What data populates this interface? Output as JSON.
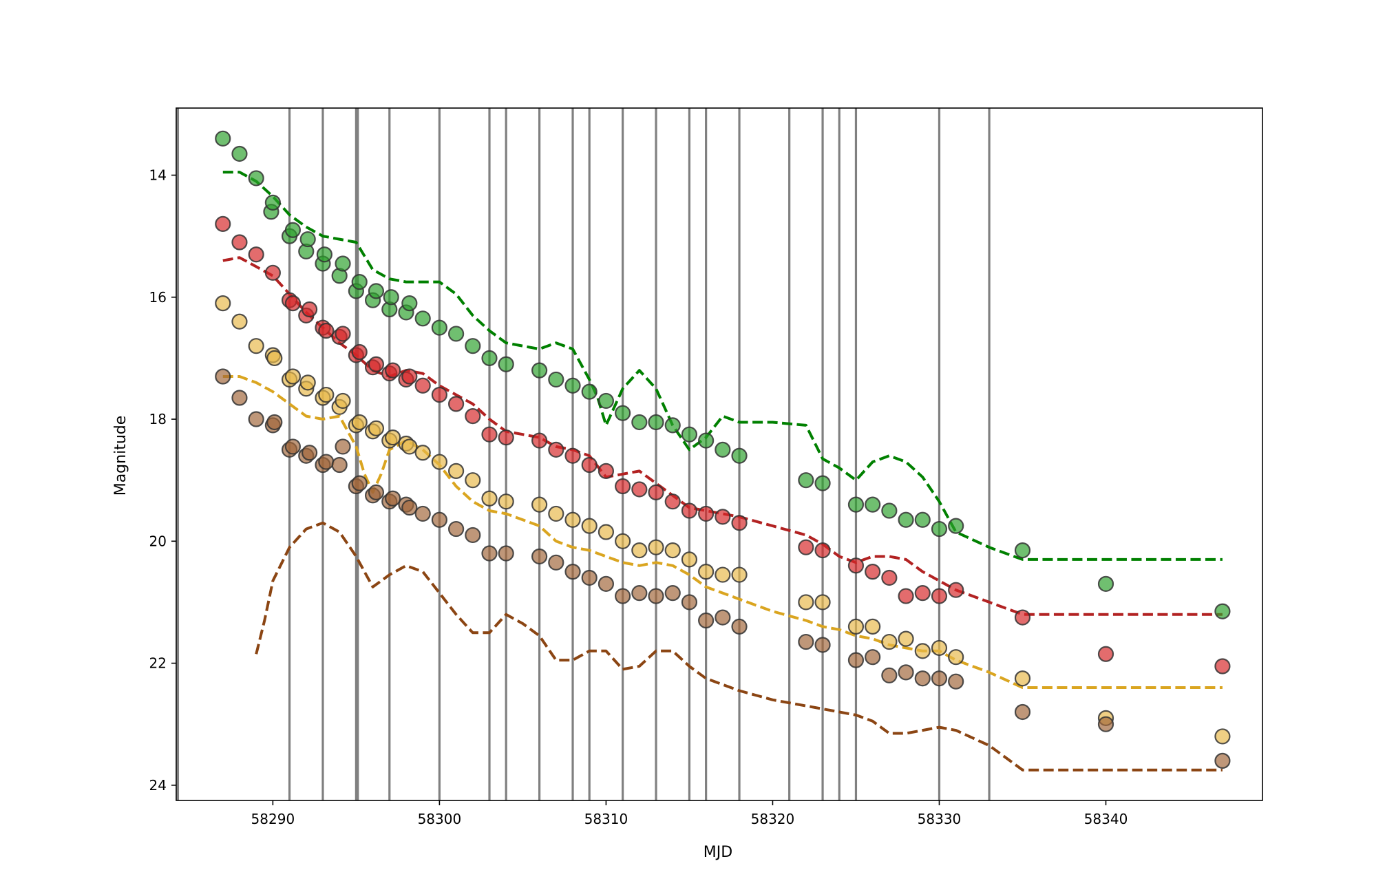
{
  "chart_data": {
    "type": "scatter",
    "xlabel": "MJD",
    "ylabel": "Magnitude",
    "xlim": [
      58284.2,
      58349.4
    ],
    "ylim": [
      24.25,
      12.9
    ],
    "y_inverted": true,
    "grid": false,
    "legend": "none",
    "x_ticks": [
      58290,
      58300,
      58310,
      58320,
      58330,
      58340
    ],
    "y_ticks": [
      14,
      16,
      18,
      20,
      22,
      24
    ],
    "vertical_lines": {
      "color": "#808080",
      "x": [
        58284.3,
        58291,
        58293,
        58295,
        58295.1,
        58297,
        58300,
        58303,
        58304,
        58306,
        58308,
        58309,
        58311,
        58313,
        58315,
        58316,
        58318,
        58321,
        58323,
        58324,
        58325,
        58330,
        58333
      ]
    },
    "series": [
      {
        "color": "#2ca02c",
        "line_color": "#008000",
        "points": {
          "x": [
            58287,
            58288,
            58289,
            58289.9,
            58290,
            58291,
            58291.2,
            58292,
            58292.1,
            58293,
            58293.1,
            58294,
            58294.2,
            58295,
            58295.2,
            58296,
            58296.2,
            58297,
            58297.1,
            58298,
            58298.2,
            58299,
            58300,
            58301,
            58302,
            58303,
            58304,
            58306,
            58307,
            58308,
            58309,
            58310,
            58311,
            58312,
            58313,
            58314,
            58315,
            58316,
            58317,
            58318,
            58322,
            58323,
            58325,
            58326,
            58327,
            58328,
            58329,
            58330,
            58331,
            58335,
            58340,
            58347
          ],
          "y": [
            13.4,
            13.65,
            14.05,
            14.6,
            14.45,
            15.0,
            14.9,
            15.25,
            15.05,
            15.45,
            15.3,
            15.65,
            15.45,
            15.9,
            15.75,
            16.05,
            15.9,
            16.2,
            16.0,
            16.25,
            16.1,
            16.35,
            16.5,
            16.6,
            16.8,
            17.0,
            17.1,
            17.2,
            17.35,
            17.45,
            17.55,
            17.7,
            17.9,
            18.05,
            18.05,
            18.1,
            18.25,
            18.35,
            18.5,
            18.6,
            19.0,
            19.05,
            19.4,
            19.4,
            19.5,
            19.65,
            19.65,
            19.8,
            19.75,
            20.15,
            20.7,
            21.15
          ]
        },
        "line": {
          "x": [
            58287,
            58288,
            58289,
            58290,
            58291,
            58292,
            58293,
            58294,
            58295,
            58296,
            58297,
            58298,
            58299,
            58300,
            58301,
            58302,
            58303,
            58304,
            58305,
            58306,
            58307,
            58308,
            58309,
            58309.5,
            58310,
            58310.5,
            58311,
            58312,
            58313,
            58314,
            58315,
            58316,
            58317,
            58318,
            58320,
            58322,
            58323,
            58324,
            58325,
            58326,
            58327,
            58328,
            58329,
            58330,
            58331,
            58333,
            58335,
            58340,
            58347
          ],
          "y": [
            13.95,
            13.95,
            14.1,
            14.35,
            14.65,
            14.85,
            15.0,
            15.05,
            15.1,
            15.55,
            15.7,
            15.75,
            15.75,
            15.75,
            15.95,
            16.3,
            16.55,
            16.75,
            16.8,
            16.85,
            16.75,
            16.85,
            17.35,
            17.65,
            18.1,
            17.8,
            17.5,
            17.2,
            17.5,
            18.1,
            18.5,
            18.3,
            17.95,
            18.05,
            18.05,
            18.1,
            18.65,
            18.8,
            19.0,
            18.7,
            18.6,
            18.7,
            18.95,
            19.35,
            19.85,
            20.1,
            20.3,
            20.3,
            20.3
          ]
        }
      },
      {
        "color": "#d62728",
        "line_color": "#b22222",
        "points": {
          "x": [
            58287,
            58288,
            58289,
            58290,
            58291,
            58291.2,
            58292,
            58292.2,
            58293,
            58293.2,
            58294,
            58294.2,
            58295,
            58295.2,
            58296,
            58296.2,
            58297,
            58297.2,
            58298,
            58298.2,
            58299,
            58300,
            58301,
            58302,
            58303,
            58304,
            58306,
            58307,
            58308,
            58309,
            58310,
            58311,
            58312,
            58313,
            58314,
            58315,
            58316,
            58317,
            58318,
            58322,
            58323,
            58325,
            58326,
            58327,
            58328,
            58329,
            58330,
            58331,
            58335,
            58340,
            58347
          ],
          "y": [
            14.8,
            15.1,
            15.3,
            15.6,
            16.05,
            16.1,
            16.3,
            16.2,
            16.5,
            16.55,
            16.65,
            16.6,
            16.95,
            16.9,
            17.15,
            17.1,
            17.25,
            17.2,
            17.35,
            17.3,
            17.45,
            17.6,
            17.75,
            17.95,
            18.25,
            18.3,
            18.35,
            18.5,
            18.6,
            18.75,
            18.85,
            19.1,
            19.15,
            19.2,
            19.35,
            19.5,
            19.55,
            19.6,
            19.7,
            20.1,
            20.15,
            20.4,
            20.5,
            20.6,
            20.9,
            20.85,
            20.9,
            20.8,
            21.25,
            21.85,
            22.05
          ]
        },
        "line": {
          "x": [
            58287,
            58288,
            58289,
            58290,
            58291,
            58292,
            58293,
            58294,
            58295,
            58296,
            58297,
            58298,
            58299,
            58300,
            58301,
            58302,
            58303,
            58304,
            58306,
            58307,
            58308,
            58309,
            58310,
            58311,
            58312,
            58313,
            58314,
            58315,
            58316,
            58318,
            58320,
            58322,
            58323,
            58324,
            58325,
            58326,
            58327,
            58328,
            58329,
            58330,
            58331,
            58333,
            58335,
            58340,
            58347
          ],
          "y": [
            15.4,
            15.35,
            15.5,
            15.65,
            15.95,
            16.25,
            16.5,
            16.75,
            16.95,
            17.2,
            17.3,
            17.2,
            17.25,
            17.45,
            17.6,
            17.75,
            18.0,
            18.2,
            18.3,
            18.45,
            18.5,
            18.6,
            18.95,
            18.9,
            18.85,
            19.05,
            19.25,
            19.45,
            19.5,
            19.6,
            19.75,
            19.9,
            20.05,
            20.25,
            20.35,
            20.25,
            20.25,
            20.3,
            20.5,
            20.65,
            20.8,
            21.0,
            21.2,
            21.2,
            21.2
          ]
        }
      },
      {
        "color": "#e8b84a",
        "line_color": "#daa520",
        "points": {
          "x": [
            58287,
            58288,
            58289,
            58290,
            58290.1,
            58291,
            58291.2,
            58292,
            58292.1,
            58293,
            58293.2,
            58294,
            58294.2,
            58295,
            58295.2,
            58296,
            58296.2,
            58297,
            58297.2,
            58298,
            58298.2,
            58299,
            58300,
            58301,
            58302,
            58303,
            58304,
            58306,
            58307,
            58308,
            58309,
            58310,
            58311,
            58312,
            58313,
            58314,
            58315,
            58316,
            58317,
            58318,
            58322,
            58323,
            58325,
            58326,
            58327,
            58328,
            58329,
            58330,
            58331,
            58335,
            58340,
            58347
          ],
          "y": [
            16.1,
            16.4,
            16.8,
            16.95,
            17.0,
            17.35,
            17.3,
            17.5,
            17.4,
            17.65,
            17.6,
            17.8,
            17.7,
            18.1,
            18.05,
            18.2,
            18.15,
            18.35,
            18.3,
            18.4,
            18.45,
            18.55,
            18.7,
            18.85,
            19.0,
            19.3,
            19.35,
            19.4,
            19.55,
            19.65,
            19.75,
            19.85,
            20.0,
            20.15,
            20.1,
            20.15,
            20.3,
            20.5,
            20.55,
            20.55,
            21.0,
            21.0,
            21.4,
            21.4,
            21.65,
            21.6,
            21.8,
            21.75,
            21.9,
            22.25,
            22.9,
            23.2
          ]
        },
        "line": {
          "x": [
            58287,
            58288,
            58289,
            58290,
            58291,
            58292,
            58293,
            58294,
            58295,
            58295.5,
            58296,
            58296.5,
            58297,
            58298,
            58299,
            58300,
            58301,
            58302,
            58303,
            58304,
            58306,
            58307,
            58308,
            58309,
            58310,
            58311,
            58312,
            58313,
            58314,
            58315,
            58316,
            58318,
            58320,
            58322,
            58323,
            58324,
            58325,
            58326,
            58327,
            58328,
            58329,
            58330,
            58331,
            58333,
            58335,
            58340,
            58347
          ],
          "y": [
            17.3,
            17.3,
            17.4,
            17.55,
            17.75,
            17.95,
            18.0,
            17.95,
            18.45,
            18.9,
            19.2,
            18.9,
            18.5,
            18.35,
            18.5,
            18.75,
            19.1,
            19.35,
            19.5,
            19.55,
            19.75,
            20.0,
            20.1,
            20.15,
            20.25,
            20.35,
            20.4,
            20.35,
            20.4,
            20.55,
            20.75,
            20.95,
            21.15,
            21.3,
            21.4,
            21.45,
            21.55,
            21.6,
            21.7,
            21.75,
            21.8,
            21.8,
            21.95,
            22.15,
            22.4,
            22.4,
            22.4
          ]
        }
      },
      {
        "color": "#a0663a",
        "line_color": "#8b4513",
        "points": {
          "x": [
            58287,
            58288,
            58289,
            58290,
            58290.1,
            58291,
            58291.2,
            58292,
            58292.2,
            58293,
            58293.2,
            58294,
            58294.2,
            58295,
            58295.2,
            58296,
            58296.2,
            58297,
            58297.2,
            58298,
            58298.2,
            58299,
            58300,
            58301,
            58302,
            58303,
            58304,
            58306,
            58307,
            58308,
            58309,
            58310,
            58311,
            58312,
            58313,
            58314,
            58315,
            58316,
            58317,
            58318,
            58322,
            58323,
            58325,
            58326,
            58327,
            58328,
            58329,
            58330,
            58331,
            58335,
            58340,
            58347
          ],
          "y": [
            17.3,
            17.65,
            18.0,
            18.1,
            18.05,
            18.5,
            18.45,
            18.6,
            18.55,
            18.75,
            18.7,
            18.75,
            18.45,
            19.1,
            19.05,
            19.25,
            19.2,
            19.35,
            19.3,
            19.4,
            19.45,
            19.55,
            19.65,
            19.8,
            19.9,
            20.2,
            20.2,
            20.25,
            20.35,
            20.5,
            20.6,
            20.7,
            20.9,
            20.85,
            20.9,
            20.85,
            21.0,
            21.3,
            21.25,
            21.4,
            21.65,
            21.7,
            21.95,
            21.9,
            22.2,
            22.15,
            22.25,
            22.25,
            22.3,
            22.8,
            23.0,
            23.6
          ]
        },
        "line": {
          "x": [
            58289,
            58289.5,
            58290,
            58291,
            58292,
            58293,
            58294,
            58295,
            58296,
            58297,
            58298,
            58299,
            58300,
            58301,
            58302,
            58303,
            58304,
            58305,
            58306,
            58307,
            58308,
            58309,
            58310,
            58311,
            58312,
            58313,
            58314,
            58315,
            58316,
            58318,
            58320,
            58322,
            58323,
            58325,
            58326,
            58327,
            58328,
            58329,
            58330,
            58331,
            58333,
            58335,
            58340,
            58347
          ],
          "y": [
            21.85,
            21.3,
            20.65,
            20.1,
            19.8,
            19.7,
            19.85,
            20.25,
            20.75,
            20.55,
            20.4,
            20.5,
            20.85,
            21.2,
            21.5,
            21.5,
            21.2,
            21.35,
            21.55,
            21.95,
            21.95,
            21.8,
            21.8,
            22.1,
            22.05,
            21.8,
            21.8,
            22.05,
            22.25,
            22.45,
            22.6,
            22.7,
            22.75,
            22.85,
            22.95,
            23.15,
            23.15,
            23.1,
            23.05,
            23.1,
            23.35,
            23.75,
            23.75,
            23.75
          ]
        }
      }
    ]
  }
}
